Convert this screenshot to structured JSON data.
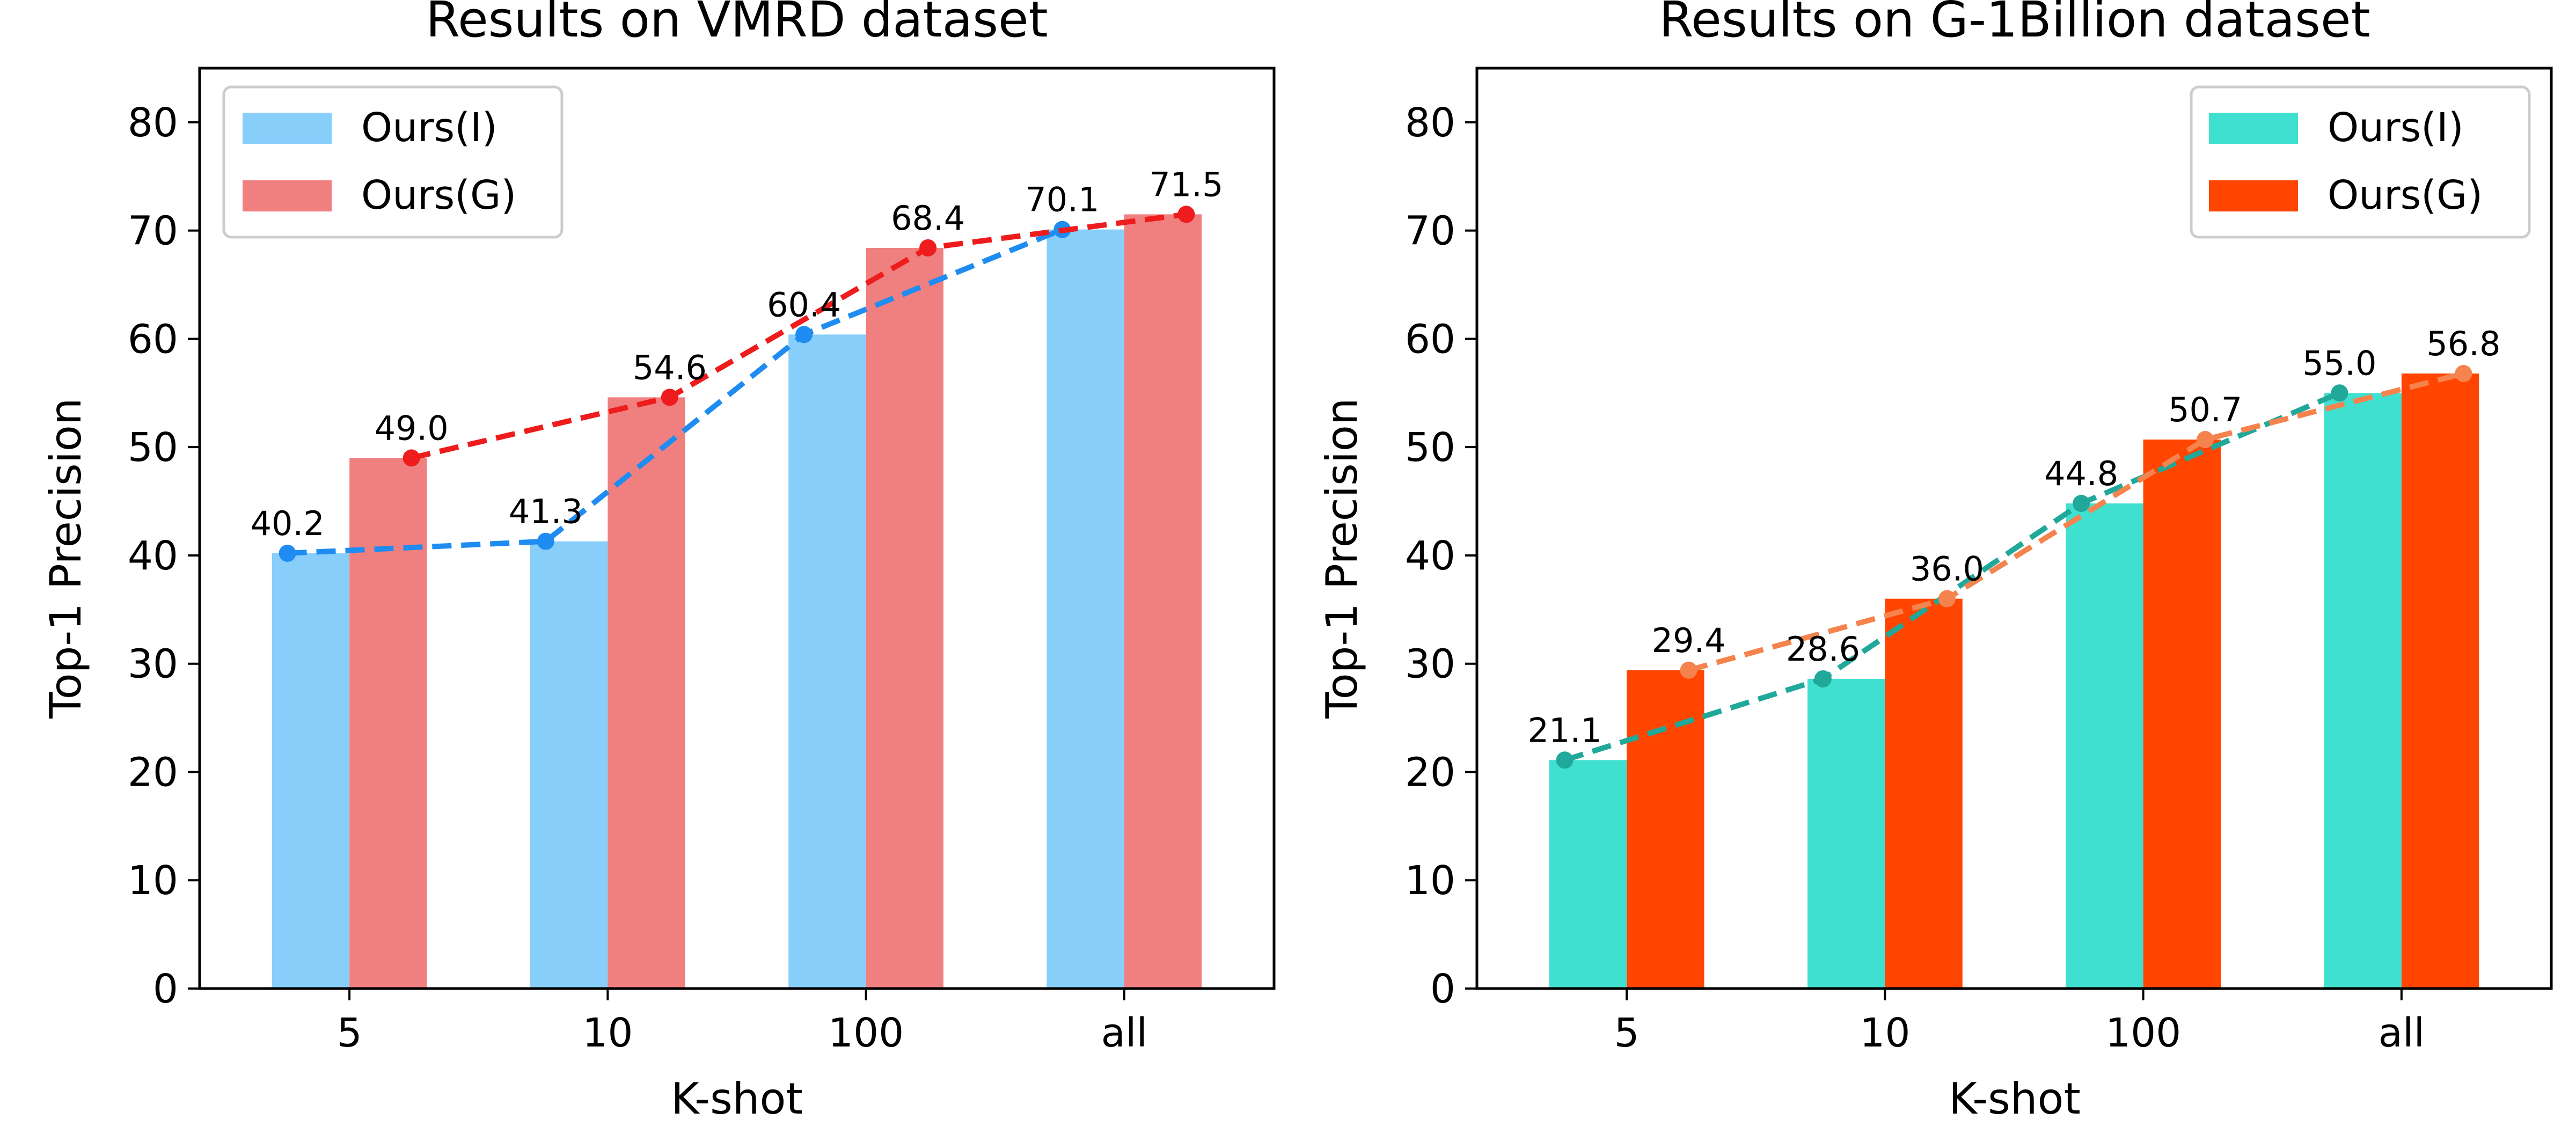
{
  "chart_data": [
    {
      "type": "bar",
      "title": "Results on VMRD dataset",
      "xlabel": "K-shot",
      "ylabel": "Top-1 Precision",
      "categories": [
        "5",
        "10",
        "100",
        "all"
      ],
      "ylim": [
        0,
        85
      ],
      "yticks": [
        0,
        10,
        20,
        30,
        40,
        50,
        60,
        70,
        80
      ],
      "grid": false,
      "legend_position": "upper-left",
      "series": [
        {
          "name": "Ours(I)",
          "values": [
            40.2,
            41.3,
            60.4,
            70.1
          ],
          "bar_color": "#87CEFA",
          "line_color": "#1E8CF0"
        },
        {
          "name": "Ours(G)",
          "values": [
            49.0,
            54.6,
            68.4,
            71.5
          ],
          "bar_color": "#F08080",
          "line_color": "#EE1C1C"
        }
      ]
    },
    {
      "type": "bar",
      "title": "Results on G-1Billion dataset",
      "xlabel": "K-shot",
      "ylabel": "Top-1 Precision",
      "categories": [
        "5",
        "10",
        "100",
        "all"
      ],
      "ylim": [
        0,
        85
      ],
      "yticks": [
        0,
        10,
        20,
        30,
        40,
        50,
        60,
        70,
        80
      ],
      "grid": false,
      "legend_position": "upper-right",
      "series": [
        {
          "name": "Ours(I)",
          "values": [
            21.1,
            28.6,
            44.8,
            55.0
          ],
          "bar_color": "#40E0D0",
          "line_color": "#20A89A"
        },
        {
          "name": "Ours(G)",
          "values": [
            29.4,
            36.0,
            50.7,
            56.8
          ],
          "bar_color": "#FF4500",
          "line_color": "#F5834E"
        }
      ]
    }
  ]
}
